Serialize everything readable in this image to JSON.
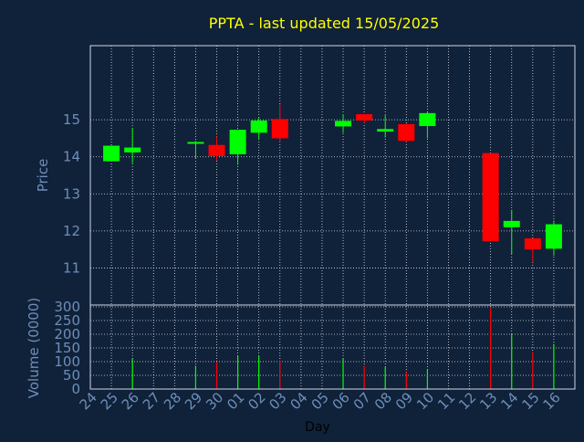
{
  "chart_data": {
    "type": "candlestick",
    "title": "PPTA - last updated 15/05/2025",
    "xlabel": "Day",
    "colors": {
      "background": "#10213a",
      "text": "#6d8fb8",
      "title": "#ffff00",
      "grid": "#ffffff",
      "up": "#00ff00",
      "down": "#ff0000"
    },
    "x_ticks": [
      "24",
      "25",
      "26",
      "27",
      "28",
      "29",
      "30",
      "01",
      "02",
      "03",
      "04",
      "05",
      "06",
      "07",
      "08",
      "09",
      "10",
      "11",
      "12",
      "13",
      "14",
      "15",
      "16"
    ],
    "price": {
      "ylabel": "Price",
      "ylim": [
        10.0,
        17.0
      ],
      "yticks": [
        "11",
        "12",
        "13",
        "14",
        "15"
      ],
      "candles": [
        {
          "day": "24",
          "open": 13.88,
          "close": 14.3,
          "high": 14.3,
          "low": 13.88
        },
        {
          "day": "25",
          "open": 14.12,
          "close": 14.25,
          "high": 14.78,
          "low": 13.83
        },
        {
          "day": "28",
          "open": 14.38,
          "close": 14.4,
          "high": 14.43,
          "low": 13.97
        },
        {
          "day": "29",
          "open": 14.32,
          "close": 14.02,
          "high": 14.55,
          "low": 13.9
        },
        {
          "day": "30",
          "open": 14.07,
          "close": 14.73,
          "high": 14.73,
          "low": 13.78
        },
        {
          "day": "01",
          "open": 14.65,
          "close": 14.98,
          "high": 15.05,
          "low": 14.47
        },
        {
          "day": "02",
          "open": 15.02,
          "close": 14.5,
          "high": 15.42,
          "low": 14.4
        },
        {
          "day": "05",
          "open": 14.82,
          "close": 14.97,
          "high": 15.15,
          "low": 14.65
        },
        {
          "day": "06",
          "open": 15.15,
          "close": 14.98,
          "high": 15.15,
          "low": 14.9
        },
        {
          "day": "07",
          "open": 14.68,
          "close": 14.75,
          "high": 15.12,
          "low": 14.52
        },
        {
          "day": "08",
          "open": 14.88,
          "close": 14.43,
          "high": 14.9,
          "low": 14.4
        },
        {
          "day": "09",
          "open": 14.83,
          "close": 15.18,
          "high": 15.2,
          "low": 14.5
        },
        {
          "day": "12",
          "open": 14.1,
          "close": 11.72,
          "high": 14.1,
          "low": 11.72
        },
        {
          "day": "13",
          "open": 12.1,
          "close": 12.27,
          "high": 12.57,
          "low": 11.37
        },
        {
          "day": "14",
          "open": 11.8,
          "close": 11.5,
          "high": 11.8,
          "low": 11.15
        },
        {
          "day": "15",
          "open": 11.52,
          "close": 12.18,
          "high": 12.28,
          "low": 11.33
        }
      ]
    },
    "volume": {
      "ylabel": "Volume (0000)",
      "ylim": [
        0,
        300
      ],
      "yticks": [
        "0",
        "50",
        "100",
        "150",
        "200",
        "250",
        "300"
      ],
      "bars": [
        {
          "day": "24",
          "value": 0,
          "dir": "up"
        },
        {
          "day": "25",
          "value": 110,
          "dir": "up"
        },
        {
          "day": "28",
          "value": 85,
          "dir": "up"
        },
        {
          "day": "29",
          "value": 100,
          "dir": "down"
        },
        {
          "day": "30",
          "value": 120,
          "dir": "up"
        },
        {
          "day": "01",
          "value": 120,
          "dir": "up"
        },
        {
          "day": "02",
          "value": 105,
          "dir": "down"
        },
        {
          "day": "05",
          "value": 110,
          "dir": "up"
        },
        {
          "day": "06",
          "value": 85,
          "dir": "down"
        },
        {
          "day": "07",
          "value": 80,
          "dir": "up"
        },
        {
          "day": "08",
          "value": 65,
          "dir": "down"
        },
        {
          "day": "09",
          "value": 72,
          "dir": "up"
        },
        {
          "day": "12",
          "value": 300,
          "dir": "down"
        },
        {
          "day": "13",
          "value": 200,
          "dir": "up"
        },
        {
          "day": "14",
          "value": 135,
          "dir": "down"
        },
        {
          "day": "15",
          "value": 165,
          "dir": "up"
        }
      ]
    }
  }
}
